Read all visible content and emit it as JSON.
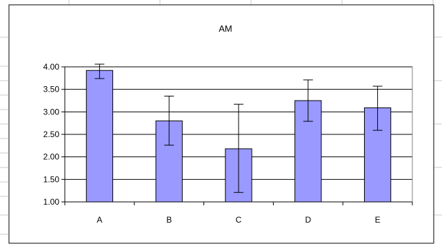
{
  "chart_data": {
    "type": "bar",
    "title": "AM",
    "xlabel": "",
    "ylabel": "",
    "categories": [
      "A",
      "B",
      "C",
      "D",
      "E"
    ],
    "values": [
      3.92,
      2.8,
      2.18,
      3.25,
      3.09
    ],
    "error_low": [
      3.74,
      2.26,
      1.21,
      2.79,
      2.59
    ],
    "error_high": [
      4.06,
      3.35,
      3.17,
      3.71,
      3.57
    ],
    "ylim": [
      1.0,
      4.0
    ],
    "yticks": [
      "1.00",
      "1.50",
      "2.00",
      "2.50",
      "3.00",
      "3.50",
      "4.00"
    ],
    "grid": true,
    "legend": "none",
    "colors": {
      "bar_fill": "#9999ff",
      "bar_stroke": "#000000",
      "gridline": "#000000",
      "spreadsheet_lines": "#c8c8c8"
    }
  }
}
